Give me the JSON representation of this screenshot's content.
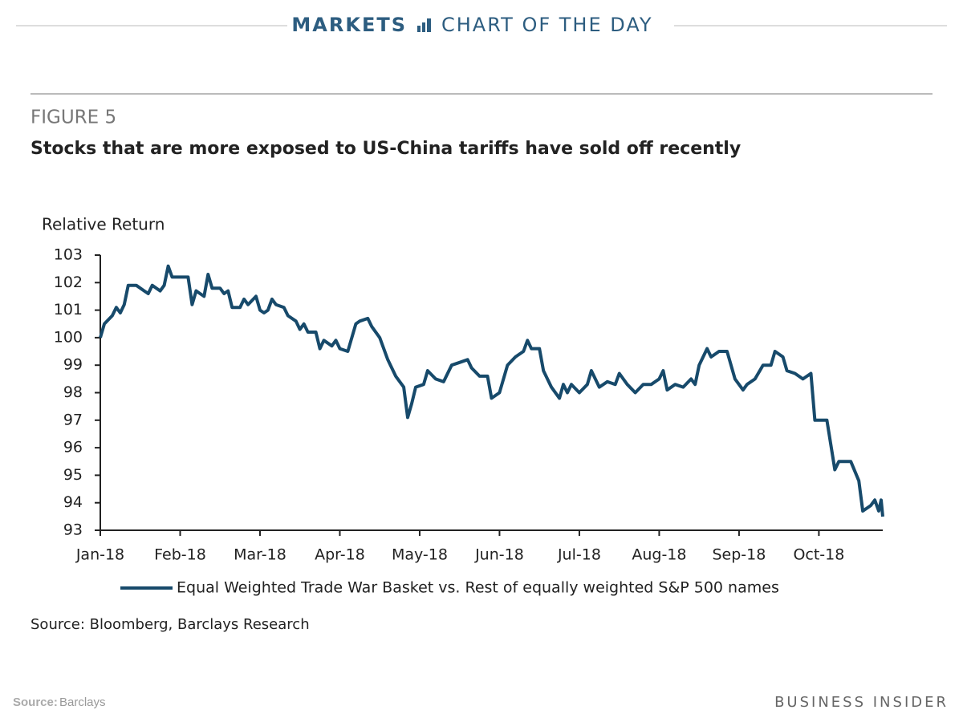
{
  "header": {
    "section": "MARKETS",
    "feature": "CHART OF THE DAY"
  },
  "chart_data": {
    "type": "line",
    "figure_label": "FIGURE 5",
    "title": "Stocks that are more exposed to US-China tariffs have sold off recently",
    "ylabel": "Relative Return",
    "source": "Source: Bloomberg, Barclays Research",
    "x": [
      0,
      0.05,
      0.15,
      0.2,
      0.25,
      0.3,
      0.35,
      0.45,
      0.55,
      0.6,
      0.65,
      0.75,
      0.8,
      0.85,
      0.9,
      1.0,
      1.1,
      1.15,
      1.2,
      1.3,
      1.35,
      1.4,
      1.5,
      1.55,
      1.6,
      1.65,
      1.75,
      1.8,
      1.85,
      1.95,
      2.0,
      2.05,
      2.1,
      2.15,
      2.2,
      2.3,
      2.35,
      2.45,
      2.5,
      2.55,
      2.6,
      2.7,
      2.75,
      2.8,
      2.9,
      2.95,
      3.0,
      3.1,
      3.2,
      3.25,
      3.35,
      3.4,
      3.5,
      3.6,
      3.7,
      3.8,
      3.85,
      3.9,
      3.95,
      4.05,
      4.1,
      4.2,
      4.3,
      4.4,
      4.5,
      4.6,
      4.65,
      4.75,
      4.85,
      4.9,
      5.0,
      5.1,
      5.2,
      5.3,
      5.35,
      5.4,
      5.5,
      5.55,
      5.65,
      5.75,
      5.8,
      5.85,
      5.9,
      6.0,
      6.1,
      6.15,
      6.25,
      6.35,
      6.45,
      6.5,
      6.6,
      6.7,
      6.8,
      6.9,
      7.0,
      7.05,
      7.1,
      7.2,
      7.3,
      7.4,
      7.45,
      7.5,
      7.6,
      7.65,
      7.75,
      7.85,
      7.95,
      8.05,
      8.1,
      8.2,
      8.3,
      8.4,
      8.45,
      8.55,
      8.6,
      8.7,
      8.8,
      8.9,
      8.95,
      9.1,
      9.2,
      9.25,
      9.4,
      9.5,
      9.55,
      9.65,
      9.7,
      9.75,
      9.78,
      9.8
    ],
    "series": [
      {
        "name": "Equal Weighted Trade War Basket vs. Rest of equally weighted S&P 500 names",
        "color": "#174a6b",
        "values": [
          100.0,
          100.5,
          100.8,
          101.1,
          100.9,
          101.2,
          101.9,
          101.9,
          101.7,
          101.6,
          101.9,
          101.7,
          101.9,
          102.6,
          102.2,
          102.2,
          102.2,
          101.2,
          101.7,
          101.5,
          102.3,
          101.8,
          101.8,
          101.6,
          101.7,
          101.1,
          101.1,
          101.4,
          101.2,
          101.5,
          101.0,
          100.9,
          101.0,
          101.4,
          101.2,
          101.1,
          100.8,
          100.6,
          100.3,
          100.5,
          100.2,
          100.2,
          99.6,
          99.9,
          99.7,
          99.9,
          99.6,
          99.5,
          100.5,
          100.6,
          100.7,
          100.4,
          100.0,
          99.2,
          98.6,
          98.2,
          97.1,
          97.6,
          98.2,
          98.3,
          98.8,
          98.5,
          98.4,
          99.0,
          99.1,
          99.2,
          98.9,
          98.6,
          98.6,
          97.8,
          98.0,
          99.0,
          99.3,
          99.5,
          99.9,
          99.6,
          99.6,
          98.8,
          98.2,
          97.8,
          98.3,
          98.0,
          98.3,
          98.0,
          98.3,
          98.8,
          98.2,
          98.4,
          98.3,
          98.7,
          98.3,
          98.0,
          98.3,
          98.3,
          98.5,
          98.8,
          98.1,
          98.3,
          98.2,
          98.5,
          98.3,
          99.0,
          99.6,
          99.3,
          99.5,
          99.5,
          98.5,
          98.1,
          98.3,
          98.5,
          99.0,
          99.0,
          99.5,
          99.3,
          98.8,
          98.7,
          98.5,
          98.7,
          97.0,
          97.0,
          95.2,
          95.5,
          95.5,
          94.8,
          93.7,
          93.9,
          94.1,
          93.7,
          94.1,
          93.5
        ]
      }
    ],
    "xlim": [
      0,
      9.8
    ],
    "xticks": [
      {
        "value": 0,
        "label": "Jan-18"
      },
      {
        "value": 1,
        "label": "Feb-18"
      },
      {
        "value": 2,
        "label": "Mar-18"
      },
      {
        "value": 3,
        "label": "Apr-18"
      },
      {
        "value": 4,
        "label": "May-18"
      },
      {
        "value": 5,
        "label": "Jun-18"
      },
      {
        "value": 6,
        "label": "Jul-18"
      },
      {
        "value": 7,
        "label": "Aug-18"
      },
      {
        "value": 8,
        "label": "Sep-18"
      },
      {
        "value": 9,
        "label": "Oct-18"
      }
    ],
    "ylim": [
      93,
      103
    ],
    "yticks": [
      93,
      94,
      95,
      96,
      97,
      98,
      99,
      100,
      101,
      102,
      103
    ],
    "legend": "bottom"
  },
  "footer": {
    "source_label": "Source:",
    "source": "Barclays",
    "brand": "BUSINESS INSIDER"
  }
}
